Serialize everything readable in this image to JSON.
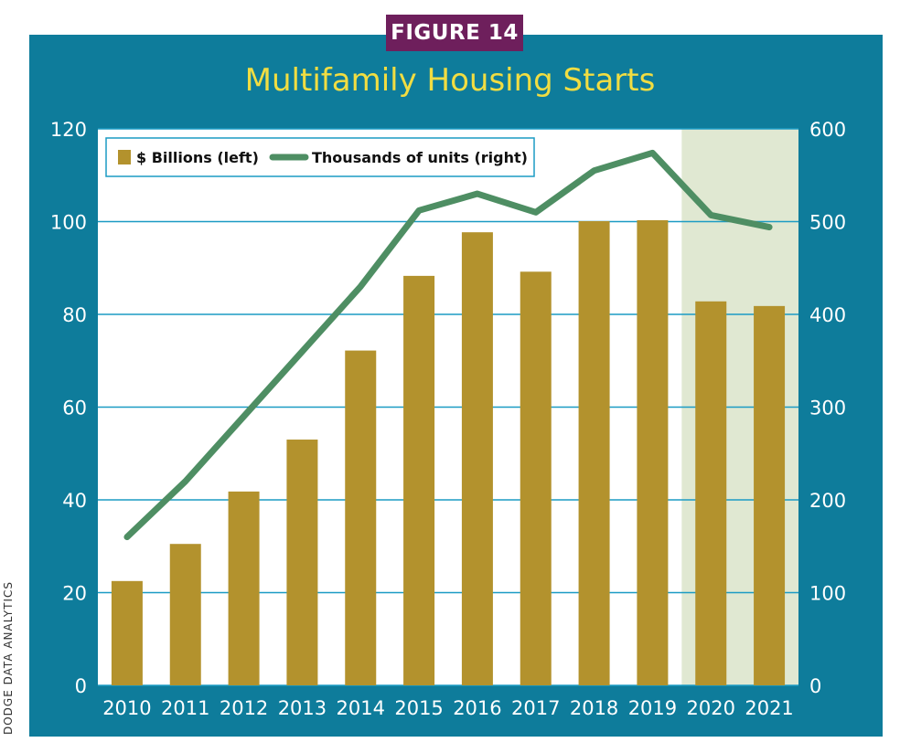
{
  "figure_label": "FIGURE 14",
  "source_credit": "DODGE DATA ANALYTICS",
  "colors": {
    "frame": "#0e7c9b",
    "badge": "#6e1f5c",
    "title": "#f1dd42",
    "bar": "#b3922d",
    "line": "#4e8e63",
    "shade": "#e0e8d2",
    "grid": "#1b9bc4"
  },
  "chart_data": {
    "type": "bar",
    "title": "Multifamily Housing Starts",
    "categories": [
      "2010",
      "2011",
      "2012",
      "2013",
      "2014",
      "2015",
      "2016",
      "2017",
      "2018",
      "2019",
      "2020",
      "2021"
    ],
    "series": [
      {
        "name": "$ Billions (left)",
        "type": "bar",
        "axis": "left",
        "values": [
          22.5,
          30.5,
          41.8,
          53.0,
          72.2,
          88.3,
          97.7,
          89.2,
          100.1,
          100.3,
          82.8,
          81.8
        ]
      },
      {
        "name": "Thousands of units (right)",
        "type": "line",
        "axis": "right",
        "values": [
          160,
          220,
          290,
          360,
          430,
          512,
          530,
          510,
          555,
          574,
          507,
          494
        ]
      }
    ],
    "left_axis": {
      "ylim": [
        0,
        120
      ],
      "ticks": [
        "0",
        "20",
        "40",
        "60",
        "80",
        "100",
        "120"
      ]
    },
    "right_axis": {
      "ylim": [
        0,
        600
      ],
      "ticks": [
        "0",
        "100",
        "200",
        "300",
        "400",
        "500",
        "600"
      ]
    },
    "shaded_categories": [
      "2020",
      "2021"
    ],
    "grid": true,
    "legend_position": "top-left"
  }
}
